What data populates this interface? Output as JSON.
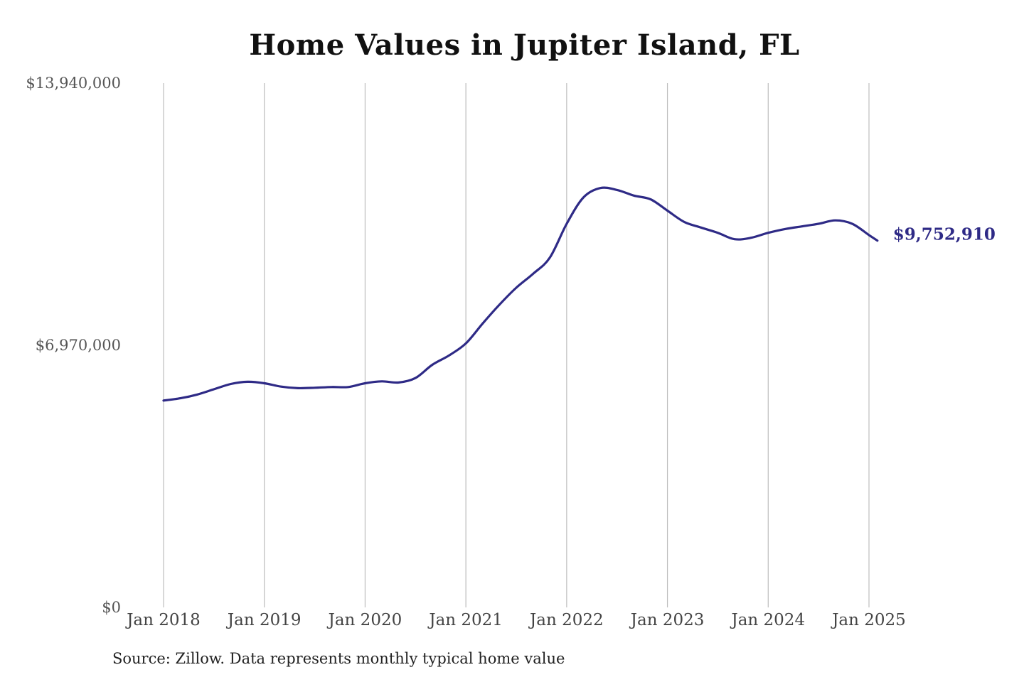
{
  "chart_data": {
    "type": "line",
    "title": "Home Values in Jupiter Island, FL",
    "xlabel": "",
    "ylabel": "",
    "source": "Source: Zillow. Data represents monthly typical home value",
    "ylim": [
      0,
      13940000
    ],
    "y_ticks": [
      {
        "value": 0,
        "label": "$0"
      },
      {
        "value": 6970000,
        "label": "$6,970,000"
      },
      {
        "value": 13940000,
        "label": "$13,940,000"
      }
    ],
    "x_ticks": [
      {
        "value": "2018-01",
        "label": "Jan 2018"
      },
      {
        "value": "2019-01",
        "label": "Jan 2019"
      },
      {
        "value": "2020-01",
        "label": "Jan 2020"
      },
      {
        "value": "2021-01",
        "label": "Jan 2021"
      },
      {
        "value": "2022-01",
        "label": "Jan 2022"
      },
      {
        "value": "2023-01",
        "label": "Jan 2023"
      },
      {
        "value": "2024-01",
        "label": "Jan 2024"
      },
      {
        "value": "2025-01",
        "label": "Jan 2025"
      }
    ],
    "grid": {
      "vertical": true,
      "horizontal": false
    },
    "legend": "none",
    "line_color": "#2e2a86",
    "end_label": "$9,752,910",
    "series": [
      {
        "x": [
          "2018-01",
          "2018-03",
          "2018-05",
          "2018-07",
          "2018-09",
          "2018-11",
          "2019-01",
          "2019-03",
          "2019-05",
          "2019-07",
          "2019-09",
          "2019-11",
          "2020-01",
          "2020-03",
          "2020-05",
          "2020-07",
          "2020-09",
          "2020-11",
          "2021-01",
          "2021-03",
          "2021-05",
          "2021-07",
          "2021-09",
          "2021-11",
          "2022-01",
          "2022-03",
          "2022-05",
          "2022-07",
          "2022-09",
          "2022-11",
          "2023-01",
          "2023-03",
          "2023-05",
          "2023-07",
          "2023-09",
          "2023-11",
          "2024-01",
          "2024-03",
          "2024-05",
          "2024-07",
          "2024-09",
          "2024-11",
          "2025-01",
          "2025-02"
        ],
        "values": [
          5500000,
          5560000,
          5660000,
          5800000,
          5940000,
          6000000,
          5960000,
          5870000,
          5830000,
          5840000,
          5860000,
          5860000,
          5960000,
          6010000,
          5980000,
          6100000,
          6450000,
          6700000,
          7020000,
          7550000,
          8050000,
          8500000,
          8870000,
          9300000,
          10200000,
          10900000,
          11150000,
          11100000,
          10950000,
          10850000,
          10550000,
          10250000,
          10100000,
          9960000,
          9790000,
          9830000,
          9960000,
          10060000,
          10130000,
          10200000,
          10290000,
          10200000,
          9900000,
          9752910
        ]
      }
    ]
  }
}
